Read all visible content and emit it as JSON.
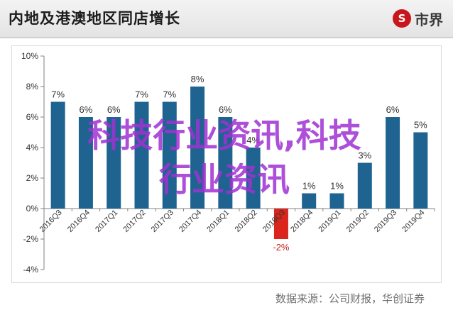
{
  "header": {
    "title": "内地及港澳地区同店增长",
    "logo_mark": "S",
    "logo_text": "市界"
  },
  "watermark": {
    "line1": "科技行业资讯,科技",
    "line2": "行业资讯"
  },
  "source": "数据来源：公司财报，华创证券",
  "colors": {
    "bar": "#1f6391",
    "bar_negative": "#d9251c",
    "axis": "#808080",
    "text": "#333333",
    "negative_label": "#c0241d"
  },
  "chart_data": {
    "type": "bar",
    "title": "内地及港澳地区同店增长",
    "xlabel": "",
    "ylabel": "",
    "categories": [
      "2016Q3",
      "2016Q4",
      "2017Q1",
      "2017Q2",
      "2017Q3",
      "2017Q4",
      "2018Q1",
      "2018Q2",
      "2018Q3",
      "2018Q4",
      "2019Q1",
      "2019Q2",
      "2019Q3",
      "2019Q4"
    ],
    "values": [
      7,
      6,
      6,
      7,
      7,
      8,
      6,
      4,
      -2,
      1,
      1,
      3,
      6,
      5
    ],
    "data_labels": [
      "7%",
      "6%",
      "6%",
      "7%",
      "7%",
      "8%",
      "6%",
      "4%",
      "-2%",
      "1%",
      "1%",
      "3%",
      "6%",
      "5%"
    ],
    "ylim": [
      -4,
      10
    ],
    "yticks": [
      -4,
      -2,
      0,
      2,
      4,
      6,
      8,
      10
    ],
    "ytick_labels": [
      "-4%",
      "-2%",
      "0%",
      "2%",
      "4%",
      "6%",
      "8%",
      "10%"
    ],
    "grid": false,
    "legend": "none"
  }
}
